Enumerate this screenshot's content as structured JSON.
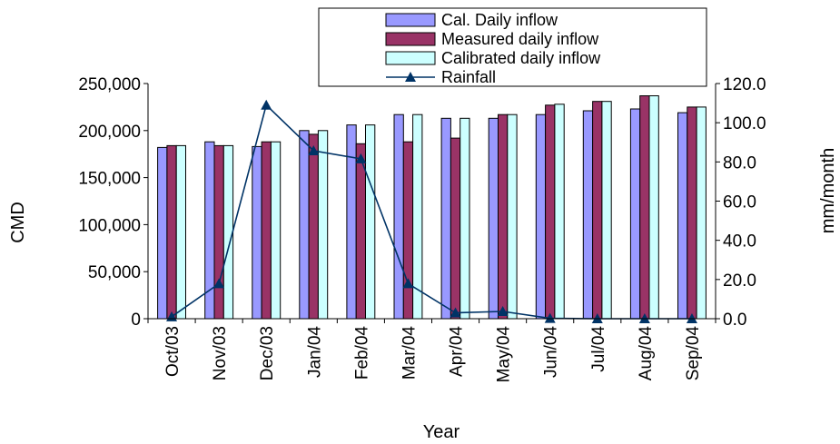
{
  "chart_data": {
    "type": "bar",
    "categories": [
      "Oct/03",
      "Nov/03",
      "Dec/03",
      "Jan/04",
      "Feb/04",
      "Mar/04",
      "Apr/04",
      "May/04",
      "Jun/04",
      "Jul/04",
      "Aug/04",
      "Sep/04"
    ],
    "series": [
      {
        "name": "Cal. Daily inflow",
        "kind": "bar",
        "axis": "left",
        "color": "#9999ff",
        "values": [
          182000,
          188000,
          183000,
          200000,
          206000,
          217000,
          213000,
          213000,
          217000,
          221000,
          223000,
          219000
        ]
      },
      {
        "name": "Measured daily inflow",
        "kind": "bar",
        "axis": "left",
        "color": "#993366",
        "values": [
          184000,
          184000,
          188000,
          196000,
          186000,
          188000,
          192000,
          217000,
          227000,
          231000,
          237000,
          225000
        ]
      },
      {
        "name": "Calibrated daily inflow",
        "kind": "bar",
        "axis": "left",
        "color": "#ccffff",
        "values": [
          184000,
          184000,
          188000,
          200000,
          206000,
          217000,
          213000,
          217000,
          228000,
          231000,
          237000,
          225000
        ]
      },
      {
        "name": "Rainfall",
        "kind": "line",
        "axis": "right",
        "color": "#003366",
        "values": [
          1.0,
          17.9,
          109.0,
          85.7,
          81.6,
          17.9,
          3.0,
          3.7,
          0.2,
          0.0,
          0.0,
          0.0
        ]
      }
    ],
    "xlabel": "Year",
    "ylabel": "CMD",
    "y2label": "mm/month",
    "ylim": [
      0,
      250000
    ],
    "y2lim": [
      0,
      120
    ],
    "yticks": [
      "0",
      "50,000",
      "100,000",
      "150,000",
      "200,000",
      "250,000"
    ],
    "y2ticks": [
      "0.0",
      "20.0",
      "40.0",
      "60.0",
      "80.0",
      "100.0",
      "120.0"
    ],
    "grid": false,
    "legend": "top-right"
  }
}
